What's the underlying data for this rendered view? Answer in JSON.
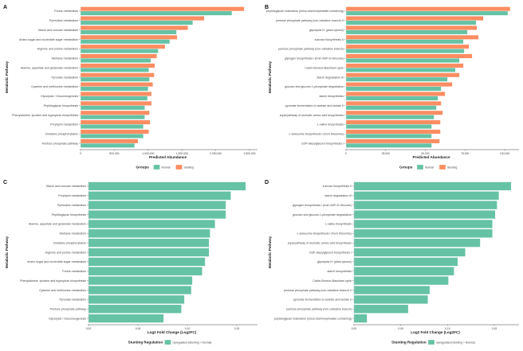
{
  "colors": {
    "normal": "#66c2a5",
    "stunting": "#fc8d62",
    "upregulated": "#66c2a5",
    "axis": "#333333",
    "text": "#444444"
  },
  "chart_data": [
    {
      "panel": "A",
      "type": "bar",
      "orientation": "horizontal",
      "xlabel": "Predicted Abundance",
      "ylabel": "Metabolic Pathway",
      "xlim": [
        0,
        2500000
      ],
      "xticks": [
        0,
        500000,
        1000000,
        1500000,
        2000000,
        2500000
      ],
      "xtick_labels": [
        "0",
        "500,000",
        "1,000,000",
        "1,500,000",
        "2,000,000",
        "2,500,000"
      ],
      "legend": {
        "title": "Groups",
        "position": "bottom",
        "entries": [
          "Normal",
          "Stunting"
        ]
      },
      "categories": [
        "Purine metabolism",
        "Pyrimidine metabolism",
        "Starch and sucrose metabolism",
        "Amino sugar and nucleotide sugar metabolism",
        "Arginine and proline metabolism",
        "Methane metabolism",
        "Alanine, aspartate and glutamate metabolism",
        "Pyruvate metabolism",
        "Cysteine and methionine metabolism",
        "Glycolysis / Gluconeogenesis",
        "Peptidoglycan biosynthesis",
        "Phenylalanine, tyrosine and tryptophan biosynthesis",
        "Porphyrin metabolism",
        "Oxidative phosphorylation",
        "Pentose phosphate pathway"
      ],
      "series": [
        {
          "name": "Stunting",
          "values": [
            2420000,
            1830000,
            1590000,
            1430000,
            1250000,
            1130000,
            1100000,
            1090000,
            1070000,
            1050000,
            1050000,
            1020000,
            1030000,
            1010000,
            850000
          ]
        },
        {
          "name": "Normal",
          "values": [
            2240000,
            1660000,
            1420000,
            1320000,
            1150000,
            1040000,
            1010000,
            1020000,
            1000000,
            990000,
            950000,
            950000,
            930000,
            930000,
            800000
          ]
        }
      ]
    },
    {
      "panel": "B",
      "type": "bar",
      "orientation": "horizontal",
      "xlabel": "Predicted Abundance",
      "ylabel": "Metabolic Pathway",
      "xlim": [
        0,
        105000
      ],
      "xticks": [
        0,
        25000,
        50000,
        75000,
        100000
      ],
      "xtick_labels": [
        "0",
        "25,000",
        "50,000",
        "75,000",
        "100,000"
      ],
      "legend": {
        "title": "Groups",
        "position": "bottom",
        "entries": [
          "Normal",
          "Stunting"
        ]
      },
      "categories": [
        "peptidoglycan maturation (meso-diaminopimelate containing)",
        "pentose phosphate pathway (non-oxidative branch) II",
        "glycolysis IV (plant cytosol)",
        "sucrose biosynthesis II",
        "pentose phosphate pathway (non-oxidative branch)",
        "glycogen biosynthesis I (from ADP-D-Glucose)",
        "Calvin-Benson-Bassham cycle",
        "starch degradation III",
        "glucose and glucose-1-phosphate degradation",
        "starch biosynthesis",
        "pyruvate fermentation to acetate and lactate II",
        "superpathway of aromatic amino acid biosynthesis",
        "L-valine biosynthesis",
        "L-isoleucine biosynthesis I (from threonine)",
        "CDP-diacylglycerol biosynthesis I"
      ],
      "series": [
        {
          "name": "Stunting",
          "values": [
            103500,
            86500,
            82500,
            83500,
            77500,
            79500,
            74000,
            71500,
            67000,
            62500,
            60000,
            61000,
            59500,
            59500,
            59000
          ]
        },
        {
          "name": "Normal",
          "values": [
            102000,
            82000,
            76500,
            74000,
            74500,
            71500,
            69000,
            64000,
            60000,
            58000,
            57000,
            55500,
            54000,
            54000,
            54000
          ]
        }
      ]
    },
    {
      "panel": "C",
      "type": "bar",
      "orientation": "horizontal",
      "xlabel": "Log2 Fold Change (Log2FC)",
      "ylabel": "Metabolic Pathway",
      "xlim": [
        0,
        0.175
      ],
      "xticks": [
        0,
        0.05,
        0.1,
        0.15
      ],
      "xtick_labels": [
        "0.00",
        "0.05",
        "0.10",
        "0.15"
      ],
      "legend": {
        "title": "Stunting Regulation",
        "position": "bottom",
        "entries": [
          "Upregulated (Stunting > Normal)"
        ]
      },
      "categories": [
        "Starch and sucrose metabolism",
        "Porphyrin metabolism",
        "Pyrimidine metabolism",
        "Peptidoglycan biosynthesis",
        "Alanine, aspartate and glutamate metabolism",
        "Methane metabolism",
        "Oxidative phosphorylation",
        "Arginine and proline metabolism",
        "Amino sugar and nucleotide sugar metabolism",
        "Purine metabolism",
        "Phenylalanine, tyrosine and tryptophan biosynthesis",
        "Cysteine and methionine metabolism",
        "Pyruvate metabolism",
        "Pentose phosphate pathway",
        "Glycolysis / Gluconeogenesis"
      ],
      "series": [
        {
          "name": "Upregulated (Stunting > Normal)",
          "values": [
            0.159,
            0.144,
            0.139,
            0.139,
            0.128,
            0.123,
            0.122,
            0.122,
            0.118,
            0.115,
            0.105,
            0.104,
            0.097,
            0.094,
            0.076
          ]
        }
      ]
    },
    {
      "panel": "D",
      "type": "bar",
      "orientation": "horizontal",
      "xlabel": "Log2 Fold Change (Log2FC)",
      "ylabel": "Metabolic Pathway",
      "xlim": [
        0,
        0.185
      ],
      "xticks": [
        0,
        0.05,
        0.1,
        0.15
      ],
      "xtick_labels": [
        "0.00",
        "0.05",
        "0.10",
        "0.15"
      ],
      "legend": {
        "title": "Stunting Regulation",
        "position": "bottom",
        "entries": [
          "Upregulated (Stunting > Normal)"
        ]
      },
      "categories": [
        "sucrose biosynthesis II",
        "starch degradation III",
        "glycogen biosynthesis I (from ADP-D-Glucose)",
        "glucose and glucose-1-phosphate degradation",
        "L-valine biosynthesis",
        "L-isoleucine biosynthesis I (from threonine)",
        "superpathway of aromatic amino acid biosynthesis",
        "CDP-diacylglycerol biosynthesis I",
        "glycolysis IV (plant cytosol)",
        "starch biosynthesis",
        "Calvin-Benson-Bassham cycle",
        "pentose phosphate pathway (non-oxidative branch) II",
        "pyruvate fermentation to acetate and lactate II",
        "pentose phosphate pathway (non-oxidative branch)",
        "peptidoglycan maturation (meso-diaminopimelate containing)"
      ],
      "series": [
        {
          "name": "Upregulated (Stunting > Normal)",
          "values": [
            0.168,
            0.155,
            0.153,
            0.151,
            0.148,
            0.148,
            0.135,
            0.119,
            0.111,
            0.107,
            0.101,
            0.081,
            0.079,
            0.058,
            0.014
          ]
        }
      ]
    }
  ]
}
